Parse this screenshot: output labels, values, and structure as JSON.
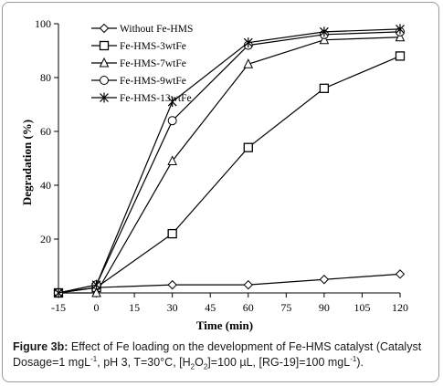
{
  "chart_data": {
    "type": "line",
    "xlabel": "Time (min)",
    "ylabel": "Degradation (%)",
    "xlim": [
      -15,
      120
    ],
    "ylim": [
      0,
      100
    ],
    "xticks": [
      "-15",
      "0",
      "15",
      "30",
      "45",
      "60",
      "75",
      "90",
      "105",
      "120"
    ],
    "yticks": [
      "20",
      "40",
      "60",
      "80",
      "100"
    ],
    "x": [
      -15,
      0,
      30,
      60,
      90,
      120
    ],
    "legend_position": "top-left",
    "series": [
      {
        "name": "Without Fe-HMS",
        "marker": "diamond",
        "values": [
          0,
          2,
          3,
          3,
          5,
          7
        ]
      },
      {
        "name": "Fe-HMS-3wtFe",
        "marker": "square",
        "values": [
          0,
          2,
          22,
          54,
          76,
          88
        ]
      },
      {
        "name": "Fe-HMS-7wtFe",
        "marker": "triangle",
        "values": [
          0,
          0,
          49,
          85,
          94,
          95
        ]
      },
      {
        "name": "Fe-HMS-9wtFe",
        "marker": "circle",
        "values": [
          0,
          3,
          64,
          92,
          96,
          97
        ]
      },
      {
        "name": "Fe-HMS-13wtFe",
        "marker": "asterisk",
        "values": [
          0,
          3,
          71,
          93,
          97,
          98
        ]
      }
    ]
  },
  "caption": {
    "label": "Figure 3b:",
    "text_a": " Effect of Fe loading on the development of Fe-HMS catalyst (Catalyst Dosage=1 mgL",
    "sup1": "-1",
    "text_b": ", pH 3, T=30°C, [H",
    "sub1": "2",
    "text_c": "O",
    "sub2": "2",
    "text_d": "]=100 µL, [RG-19]=100 mgL",
    "sup2": "-1",
    "text_e": ")."
  }
}
